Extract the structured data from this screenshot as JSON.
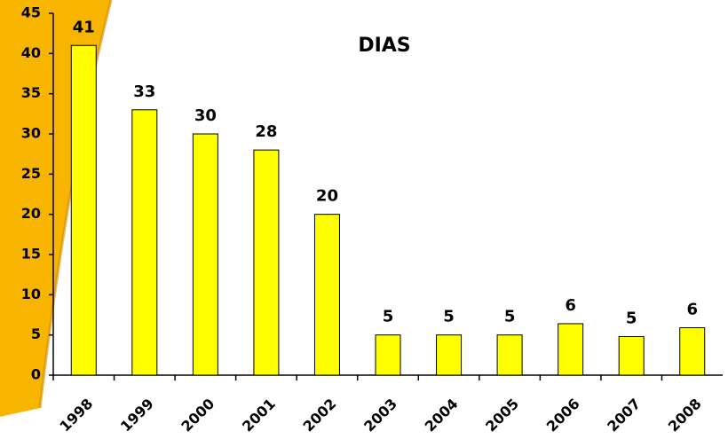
{
  "chart_data": {
    "type": "bar",
    "title": "DIAS",
    "categories": [
      "1998",
      "1999",
      "2000",
      "2001",
      "2002",
      "2003",
      "2004",
      "2005",
      "2006",
      "2007",
      "2008"
    ],
    "values": [
      41,
      33,
      30,
      28,
      20,
      5,
      5,
      5,
      6.4,
      4.8,
      5.9
    ],
    "value_labels": [
      "41",
      "33",
      "30",
      "28",
      "20",
      "5",
      "5",
      "5",
      "6",
      "5",
      "6"
    ],
    "color": "#ffff00",
    "ylim": [
      0,
      45
    ],
    "yticks": [
      0,
      5,
      10,
      15,
      20,
      25,
      30,
      35,
      40,
      45
    ],
    "grid": false
  }
}
